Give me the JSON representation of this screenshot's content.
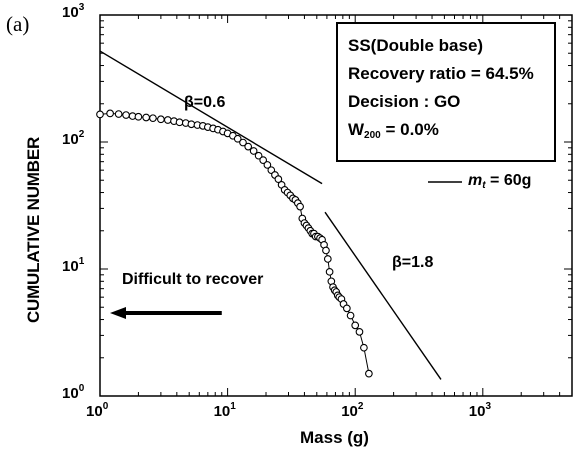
{
  "panel_label": "(a)",
  "chart_data": {
    "type": "scatter",
    "xlabel": "Mass (g)",
    "ylabel": "CUMULATIVE NUMBER",
    "xscale": "log",
    "yscale": "log",
    "xlim": [
      1,
      5000
    ],
    "ylim": [
      1,
      1000
    ],
    "x_ticks": [
      {
        "base": "10",
        "exp": "0",
        "value": 1
      },
      {
        "base": "10",
        "exp": "1",
        "value": 10
      },
      {
        "base": "10",
        "exp": "2",
        "value": 100
      },
      {
        "base": "10",
        "exp": "3",
        "value": 1000
      }
    ],
    "y_ticks": [
      {
        "base": "10",
        "exp": "0",
        "value": 1
      },
      {
        "base": "10",
        "exp": "1",
        "value": 10
      },
      {
        "base": "10",
        "exp": "2",
        "value": 100
      },
      {
        "base": "10",
        "exp": "3",
        "value": 1000
      }
    ],
    "series": [
      {
        "name": "",
        "style": "open-circle-line",
        "x": [
          1.0,
          1.2,
          1.4,
          1.6,
          1.8,
          2.0,
          2.3,
          2.6,
          3.0,
          3.4,
          3.8,
          4.2,
          4.7,
          5.2,
          5.8,
          6.4,
          7.0,
          7.7,
          8.4,
          9.2,
          10.0,
          11.0,
          12.0,
          13.2,
          14.5,
          16.0,
          17.5,
          19.0,
          20.5,
          22.0,
          23.5,
          25.0,
          26.5,
          28.0,
          29.5,
          31.0,
          32.5,
          34.0,
          35.5,
          37.0,
          38.5,
          40.0,
          41.5,
          43.0,
          44.5,
          46.0,
          47.5,
          49.0,
          51.0,
          53.0,
          55.0,
          57.0,
          59.0,
          61.0,
          63.0,
          65.0,
          67.0,
          69.0,
          71.0,
          73.0,
          75.0,
          78.0,
          81.0,
          86.0,
          92.0,
          100.0,
          108.0,
          117.0,
          128.0
        ],
        "y": [
          165,
          168,
          166,
          163,
          160,
          158,
          156,
          154,
          151,
          149,
          146,
          143,
          141,
          138,
          136,
          134,
          131,
          128,
          125,
          121,
          117,
          112,
          106,
          99,
          92,
          85,
          78,
          72,
          66,
          60,
          55,
          51,
          46,
          42,
          40,
          38,
          36,
          35,
          33,
          31,
          25,
          23,
          22,
          21,
          20,
          19,
          19,
          18,
          18,
          17.5,
          17,
          15.5,
          14,
          12,
          9.5,
          8,
          7.2,
          6.8,
          6.6,
          6.2,
          6.0,
          5.8,
          5.3,
          4.9,
          4.3,
          3.6,
          3.2,
          2.4,
          1.5
        ]
      }
    ],
    "fit_lines": [
      {
        "label": "β=0.6",
        "x": [
          1.0,
          55.0
        ],
        "y": [
          520,
          47
        ]
      },
      {
        "label": "β=1.8",
        "x": [
          58.0,
          470.0
        ],
        "y": [
          28,
          1.35
        ]
      }
    ],
    "legend": {
      "sample_label": "m",
      "sample_sub": "t",
      "sample_value": " = 60g"
    },
    "annotations": {
      "difficult_to_recover": "Difficult to recover",
      "arrow_x": [
        9.0,
        1.0
      ],
      "arrow_y": 4.5
    },
    "info_box": {
      "line1": "SS(Double base)",
      "line2": "Recovery ratio = 64.5%",
      "line3": "Decision : GO",
      "line4_main": "W",
      "line4_sub": "200",
      "line4_rest": " = 0.0%"
    },
    "grid": false
  }
}
